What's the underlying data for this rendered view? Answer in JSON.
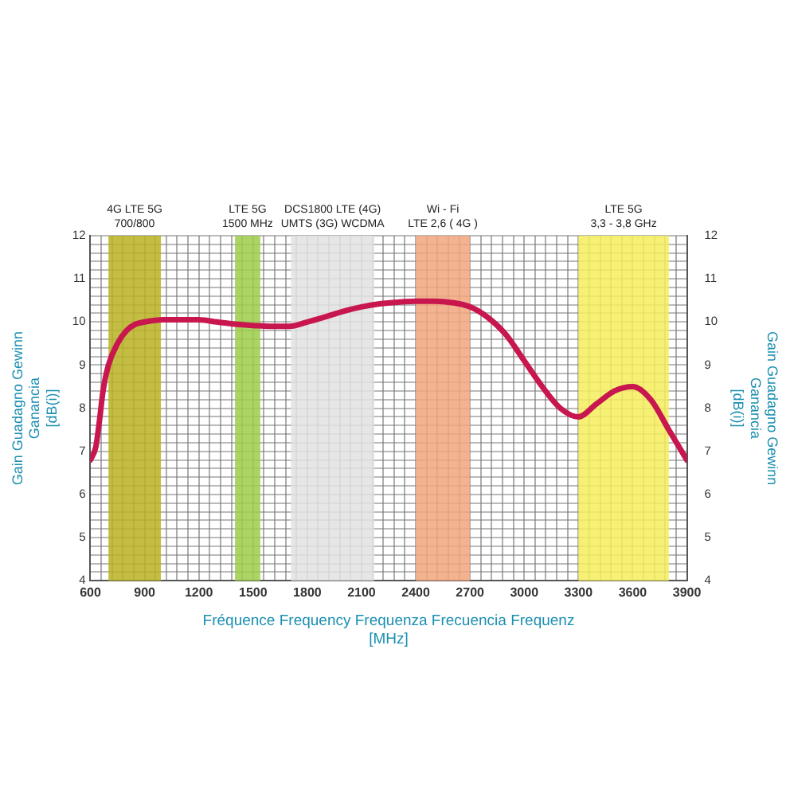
{
  "chart_data": {
    "type": "line",
    "xlabel": "Fréquence Frequency Frequenza Frecuencia Frequenz\n[MHz]",
    "ylabel": "Gain Guadagno Gewinn\nGanancia\n[dB(i)]",
    "y2label": "Gain Guadagno Gewinn\nGanancia\n[dB(i)]",
    "x": [
      600,
      630,
      650,
      670,
      700,
      750,
      800,
      850,
      900,
      1000,
      1100,
      1200,
      1300,
      1400,
      1500,
      1600,
      1700,
      1800,
      1900,
      2000,
      2100,
      2200,
      2300,
      2400,
      2500,
      2600,
      2700,
      2800,
      2900,
      3000,
      3100,
      3200,
      3300,
      3400,
      3500,
      3600,
      3700,
      3800,
      3900
    ],
    "series": [
      {
        "color": "#c8174f",
        "values": [
          6.8,
          7.1,
          7.7,
          8.4,
          9.0,
          9.5,
          9.8,
          9.95,
          10.0,
          10.05,
          10.05,
          10.05,
          10.0,
          9.95,
          9.92,
          9.9,
          9.9,
          10.0,
          10.12,
          10.25,
          10.35,
          10.42,
          10.46,
          10.48,
          10.48,
          10.45,
          10.35,
          10.1,
          9.7,
          9.1,
          8.5,
          8.0,
          7.8,
          8.1,
          8.4,
          8.5,
          8.2,
          7.5,
          6.8
        ]
      }
    ],
    "xlim": [
      600,
      3900
    ],
    "ylim": [
      4,
      12
    ],
    "y2lim": [
      4,
      12
    ],
    "xticks": [
      600,
      {
        "value": 660,
        "label": null
      },
      {
        "value": 720,
        "label": null
      },
      {
        "value": 780,
        "label": null
      },
      {
        "value": 840,
        "label": null
      },
      900,
      {
        "value": 960,
        "label": null
      },
      {
        "value": 1020,
        "label": null
      },
      {
        "value": 1080,
        "label": null
      },
      {
        "value": 1140,
        "label": null
      },
      1200,
      {
        "value": 1260,
        "label": null
      },
      {
        "value": 1320,
        "label": null
      },
      {
        "value": 1380,
        "label": null
      },
      {
        "value": 1440,
        "label": null
      },
      1500,
      {
        "value": 1560,
        "label": null
      },
      {
        "value": 1620,
        "label": null
      },
      {
        "value": 1680,
        "label": null
      },
      {
        "value": 1740,
        "label": null
      },
      1800,
      {
        "value": 1860,
        "label": null
      },
      {
        "value": 1920,
        "label": null
      },
      {
        "value": 1980,
        "label": null
      },
      {
        "value": 2040,
        "label": null
      },
      2100,
      {
        "value": 2160,
        "label": null
      },
      {
        "value": 2220,
        "label": null
      },
      {
        "value": 2280,
        "label": null
      },
      {
        "value": 2340,
        "label": null
      },
      2400,
      {
        "value": 2460,
        "label": null
      },
      {
        "value": 2520,
        "label": null
      },
      {
        "value": 2580,
        "label": null
      },
      {
        "value": 2640,
        "label": null
      },
      2700,
      {
        "value": 2760,
        "label": null
      },
      {
        "value": 2820,
        "label": null
      },
      {
        "value": 2880,
        "label": null
      },
      {
        "value": 2940,
        "label": null
      },
      3000,
      {
        "value": 3060,
        "label": null
      },
      {
        "value": 3120,
        "label": null
      },
      {
        "value": 3180,
        "label": null
      },
      {
        "value": 3240,
        "label": null
      },
      3300,
      {
        "value": 3360,
        "label": null
      },
      {
        "value": 3420,
        "label": null
      },
      {
        "value": 3480,
        "label": null
      },
      {
        "value": 3540,
        "label": null
      },
      3600,
      {
        "value": 3660,
        "label": null
      },
      {
        "value": 3720,
        "label": null
      },
      {
        "value": 3780,
        "label": null
      },
      {
        "value": 3840,
        "label": null
      },
      3900
    ],
    "yticks": [
      4,
      {
        "value": 4.2,
        "label": null
      },
      {
        "value": 4.4,
        "label": null
      },
      {
        "value": 4.6,
        "label": null
      },
      {
        "value": 4.8,
        "label": null
      },
      5,
      {
        "value": 5.2,
        "label": null
      },
      {
        "value": 5.4,
        "label": null
      },
      {
        "value": 5.6,
        "label": null
      },
      {
        "value": 5.8,
        "label": null
      },
      6,
      {
        "value": 6.2,
        "label": null
      },
      {
        "value": 6.4,
        "label": null
      },
      {
        "value": 6.6,
        "label": null
      },
      {
        "value": 6.8,
        "label": null
      },
      7,
      {
        "value": 7.2,
        "label": null
      },
      {
        "value": 7.4,
        "label": null
      },
      {
        "value": 7.6,
        "label": null
      },
      {
        "value": 7.8,
        "label": null
      },
      8,
      {
        "value": 8.2,
        "label": null
      },
      {
        "value": 8.4,
        "label": null
      },
      {
        "value": 8.6,
        "label": null
      },
      {
        "value": 8.8,
        "label": null
      },
      9,
      {
        "value": 9.2,
        "label": null
      },
      {
        "value": 9.4,
        "label": null
      },
      {
        "value": 9.6,
        "label": null
      },
      {
        "value": 9.8,
        "label": null
      },
      10,
      {
        "value": 10.2,
        "label": null
      },
      {
        "value": 10.4,
        "label": null
      },
      {
        "value": 10.6,
        "label": null
      },
      {
        "value": 10.8,
        "label": null
      },
      11,
      {
        "value": 11.2,
        "label": null
      },
      {
        "value": 11.4,
        "label": null
      },
      {
        "value": 11.6,
        "label": null
      },
      {
        "value": 11.8,
        "label": null
      },
      12
    ],
    "y2ticks": [
      4,
      5,
      6,
      7,
      8,
      9,
      10,
      11,
      12
    ],
    "bands": [
      {
        "axis": "x",
        "from": 700,
        "to": 990,
        "label": "4G LTE 5G\n700/800",
        "color": "#b8b222"
      },
      {
        "axis": "x",
        "from": 1400,
        "to": 1540,
        "label": "LTE 5G\n1500 MHz",
        "color": "#9ccc4a"
      },
      {
        "axis": "x",
        "from": 1710,
        "to": 2170,
        "label": "DCS1800 LTE (4G)\nUMTS (3G) WCDMA",
        "color": "#e2e2e2"
      },
      {
        "axis": "x",
        "from": 2400,
        "to": 2700,
        "label": "Wi - Fi\nLTE 2,6 ( 4G )",
        "color": "#f2a67c"
      },
      {
        "axis": "x",
        "from": 3300,
        "to": 3800,
        "label": "LTE 5G\n3,3 - 3,8 GHz",
        "color": "#f4ee5c"
      }
    ],
    "grid": true,
    "marker": "none",
    "line_style": "solid"
  }
}
